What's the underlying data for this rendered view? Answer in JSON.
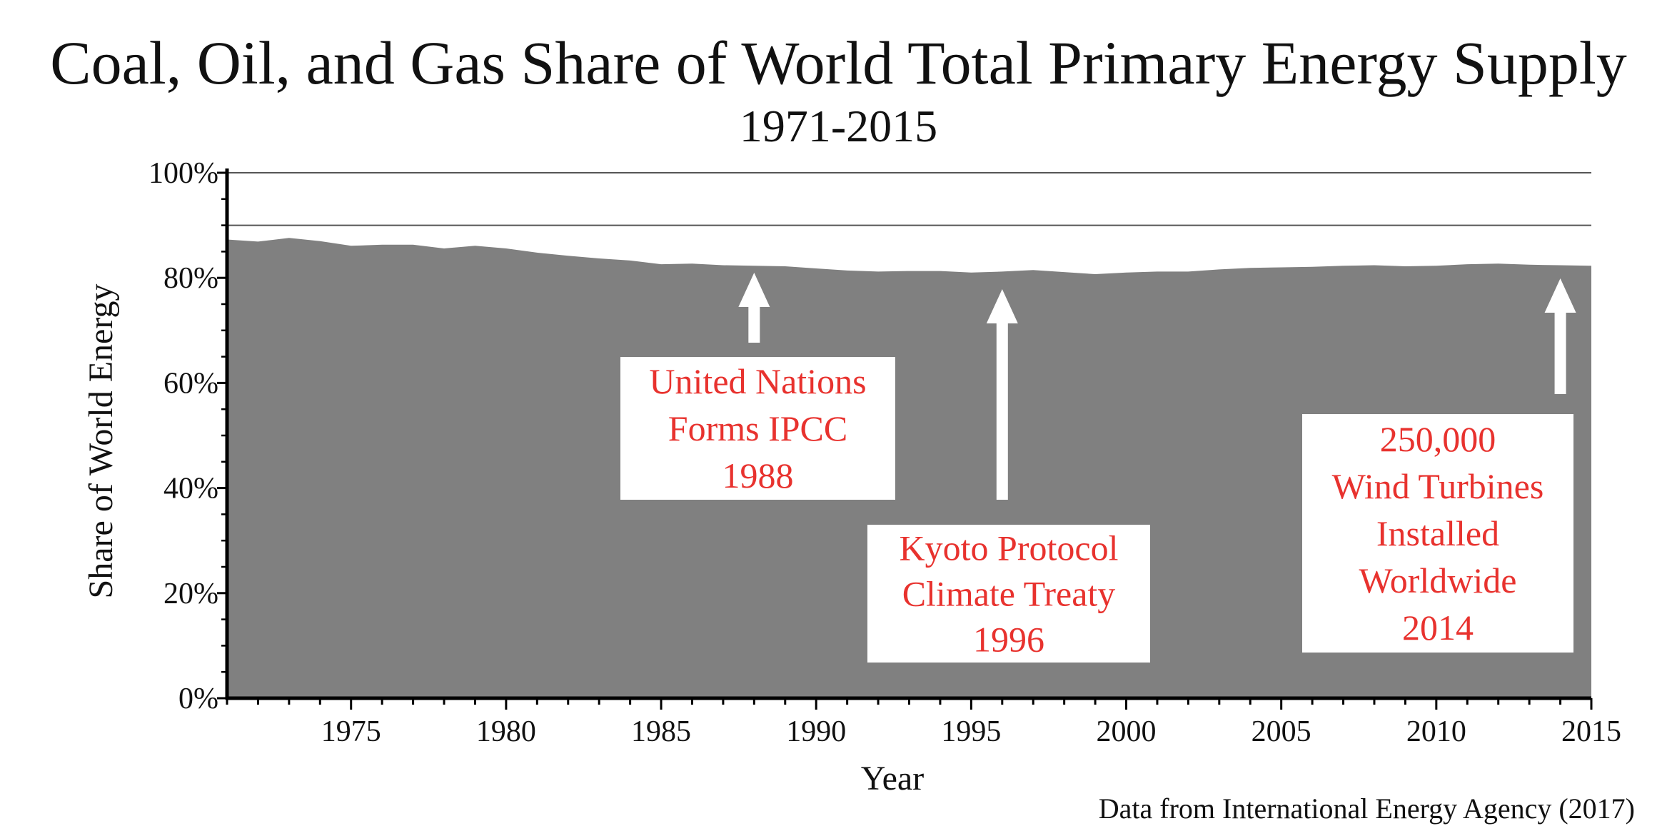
{
  "chart_data": {
    "type": "area",
    "title": "Coal, Oil, and Gas Share of World Total Primary Energy Supply",
    "subtitle": "1971-2015",
    "xlabel": "Year",
    "ylabel": "Share of World Energy",
    "source": "Data from International Energy Agency (2017)",
    "xlim": [
      1971,
      2015
    ],
    "ylim": [
      0,
      100
    ],
    "x_ticks": [
      1975,
      1980,
      1985,
      1990,
      1995,
      2000,
      2005,
      2010,
      2015
    ],
    "x_tick_labels": [
      "1975",
      "1980",
      "1985",
      "1990",
      "1995",
      "2000",
      "2005",
      "2010",
      "2015"
    ],
    "y_ticks": [
      0,
      20,
      40,
      60,
      80,
      100
    ],
    "y_tick_labels": [
      "0%",
      "20%",
      "40%",
      "60%",
      "80%",
      "100%"
    ],
    "reference_lines": [
      90,
      100
    ],
    "fill_color": "#808080",
    "annotation_color": "#e8322e",
    "series": [
      {
        "x": [
          1971,
          1972,
          1973,
          1974,
          1975,
          1976,
          1977,
          1978,
          1979,
          1980,
          1981,
          1982,
          1983,
          1984,
          1985,
          1986,
          1987,
          1988,
          1989,
          1990,
          1991,
          1992,
          1993,
          1994,
          1995,
          1996,
          1997,
          1998,
          1999,
          2000,
          2001,
          2002,
          2003,
          2004,
          2005,
          2006,
          2007,
          2008,
          2009,
          2010,
          2011,
          2012,
          2013,
          2014,
          2015
        ],
        "values": [
          87.3,
          86.9,
          87.6,
          87.0,
          86.1,
          86.3,
          86.3,
          85.6,
          86.1,
          85.6,
          84.8,
          84.2,
          83.7,
          83.3,
          82.6,
          82.7,
          82.4,
          82.3,
          82.2,
          81.8,
          81.4,
          81.2,
          81.3,
          81.3,
          81.0,
          81.2,
          81.5,
          81.1,
          80.7,
          81.0,
          81.2,
          81.2,
          81.6,
          81.9,
          82.0,
          82.1,
          82.3,
          82.4,
          82.2,
          82.3,
          82.6,
          82.7,
          82.5,
          82.4,
          82.3
        ]
      }
    ],
    "annotations": [
      {
        "lines": [
          "United Nations",
          "Forms IPCC",
          "1988"
        ],
        "year": 1988
      },
      {
        "lines": [
          "Kyoto Protocol",
          "Climate Treaty",
          "1996"
        ],
        "year": 1996
      },
      {
        "lines": [
          "250,000",
          "Wind Turbines",
          "Installed",
          "Worldwide",
          "2014"
        ],
        "year": 2014
      }
    ]
  }
}
